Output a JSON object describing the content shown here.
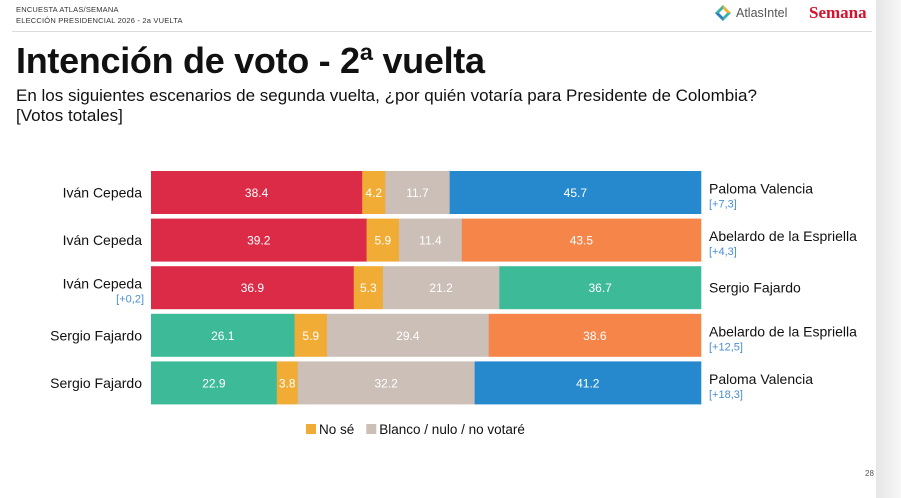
{
  "header": {
    "line1": "ENCUESTA ATLAS/SEMANA",
    "line2": "ELECCIÓN PRESIDENCIAL 2026 - 2a VUELTA",
    "logo_left": "AtlasIntel",
    "logo_right": "Semana"
  },
  "title": "Intención de voto - 2ª vuelta",
  "subtitle": "En los siguientes escenarios de segunda vuelta, ¿por quién votaría para Presidente de Colombia?",
  "subtitle2": "[Votos totales]",
  "page_number": "28",
  "colors": {
    "ivan_cepeda": "#dc2b47",
    "no_se": "#f0ac35",
    "blanco": "#cbbfb8",
    "paloma_valencia": "#2689cd",
    "abelardo": "#f6854a",
    "sergio_fajardo": "#3dba98"
  },
  "chart_data": {
    "type": "bar",
    "orientation": "horizontal-stacked",
    "legend": [
      {
        "name": "No sé",
        "color": "#f0ac35"
      },
      {
        "name": "Blanco / nulo / no votaré",
        "color": "#cbbfb8"
      }
    ],
    "rows": [
      {
        "left": "Iván Cepeda",
        "left_note": "",
        "right": "Paloma Valencia",
        "right_note": "[+7,3]",
        "segments": [
          {
            "value": 38.4,
            "label": "38.4",
            "color": "#dc2b47"
          },
          {
            "value": 4.2,
            "label": "4.2",
            "color": "#f0ac35"
          },
          {
            "value": 11.7,
            "label": "11.7",
            "color": "#cbbfb8"
          },
          {
            "value": 45.7,
            "label": "45.7",
            "color": "#2689cd"
          }
        ]
      },
      {
        "left": "Iván Cepeda",
        "left_note": "",
        "right": "Abelardo de la Espriella",
        "right_note": "[+4,3]",
        "segments": [
          {
            "value": 39.2,
            "label": "39.2",
            "color": "#dc2b47"
          },
          {
            "value": 5.9,
            "label": "5.9",
            "color": "#f0ac35"
          },
          {
            "value": 11.4,
            "label": "11.4",
            "color": "#cbbfb8"
          },
          {
            "value": 43.5,
            "label": "43.5",
            "color": "#f6854a"
          }
        ]
      },
      {
        "left": "Iván Cepeda",
        "left_note": "[+0,2]",
        "right": "Sergio Fajardo",
        "right_note": "",
        "segments": [
          {
            "value": 36.9,
            "label": "36.9",
            "color": "#dc2b47"
          },
          {
            "value": 5.3,
            "label": "5.3",
            "color": "#f0ac35"
          },
          {
            "value": 21.2,
            "label": "21.2",
            "color": "#cbbfb8"
          },
          {
            "value": 36.7,
            "label": "36.7",
            "color": "#3dba98"
          }
        ]
      },
      {
        "left": "Sergio Fajardo",
        "left_note": "",
        "right": "Abelardo de la Espriella",
        "right_note": "[+12,5]",
        "segments": [
          {
            "value": 26.1,
            "label": "26.1",
            "color": "#3dba98"
          },
          {
            "value": 5.9,
            "label": "5.9",
            "color": "#f0ac35"
          },
          {
            "value": 29.4,
            "label": "29.4",
            "color": "#cbbfb8"
          },
          {
            "value": 38.6,
            "label": "38.6",
            "color": "#f6854a"
          }
        ]
      },
      {
        "left": "Sergio Fajardo",
        "left_note": "",
        "right": "Paloma Valencia",
        "right_note": "[+18,3]",
        "segments": [
          {
            "value": 22.9,
            "label": "22.9",
            "color": "#3dba98"
          },
          {
            "value": 3.8,
            "label": "3.8",
            "color": "#f0ac35"
          },
          {
            "value": 32.2,
            "label": "32.2",
            "color": "#cbbfb8"
          },
          {
            "value": 41.2,
            "label": "41.2",
            "color": "#2689cd"
          }
        ]
      }
    ]
  }
}
